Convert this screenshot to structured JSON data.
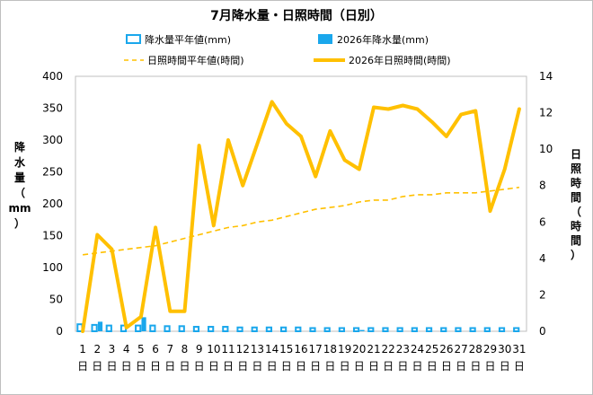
{
  "chart_data": {
    "type": "bar+line",
    "title": "7月降水量・日照時間（日別）",
    "categories": [
      "1",
      "2",
      "3",
      "4",
      "5",
      "6",
      "7",
      "8",
      "9",
      "10",
      "11",
      "12",
      "13",
      "14",
      "15",
      "16",
      "17",
      "18",
      "19",
      "20",
      "21",
      "22",
      "23",
      "24",
      "25",
      "26",
      "27",
      "28",
      "29",
      "30",
      "31"
    ],
    "day_suffix": "日",
    "y_left": {
      "label_chars": [
        "降",
        "水",
        "量",
        "（",
        "mm",
        "）"
      ],
      "ylim": [
        0,
        400
      ],
      "ticks": [
        0,
        50,
        100,
        150,
        200,
        250,
        300,
        350,
        400
      ]
    },
    "y_right": {
      "label_chars": [
        "日",
        "照",
        "時",
        "間",
        "（",
        "時",
        "間",
        "）"
      ],
      "ylim": [
        0,
        14
      ],
      "ticks": [
        0,
        2,
        4,
        6,
        8,
        10,
        12,
        14
      ]
    },
    "grid": false,
    "legend_position": "top",
    "series": [
      {
        "name": "降水量平年値(mm)",
        "type": "bar",
        "axis": "left",
        "color": "#1aa7ec",
        "style": "outline",
        "values": [
          11,
          10,
          9,
          9,
          9,
          9,
          8,
          8,
          7,
          7,
          7,
          6,
          6,
          6,
          6,
          6,
          5,
          5,
          5,
          5,
          5,
          5,
          5,
          5,
          5,
          5,
          5,
          5,
          5,
          5,
          5
        ]
      },
      {
        "name": "2026年降水量(mm)",
        "type": "bar",
        "axis": "left",
        "color": "#1aa7ec",
        "style": "filled",
        "values": [
          0,
          15,
          0,
          0,
          22,
          0,
          0,
          0,
          0,
          0,
          0,
          0,
          0,
          0,
          0,
          0,
          0,
          0,
          0,
          2,
          0,
          0,
          0,
          0,
          0,
          0,
          0,
          0,
          0,
          0,
          0
        ]
      },
      {
        "name": "日照時間平年値(時間)",
        "type": "line",
        "axis": "right",
        "color": "#ffc000",
        "style": "dashed",
        "values": [
          4.2,
          4.3,
          4.4,
          4.5,
          4.6,
          4.7,
          4.9,
          5.1,
          5.3,
          5.5,
          5.7,
          5.8,
          6.0,
          6.1,
          6.3,
          6.5,
          6.7,
          6.8,
          6.9,
          7.1,
          7.2,
          7.2,
          7.4,
          7.5,
          7.5,
          7.6,
          7.6,
          7.6,
          7.7,
          7.8,
          7.9
        ]
      },
      {
        "name": "2026年日照時間(時間)",
        "type": "line",
        "axis": "right",
        "color": "#ffc000",
        "style": "solid",
        "values": [
          0.0,
          5.3,
          4.5,
          0.2,
          0.8,
          5.7,
          1.1,
          1.1,
          10.2,
          5.8,
          10.5,
          8.0,
          10.3,
          12.6,
          11.4,
          10.7,
          8.5,
          11.0,
          9.4,
          8.9,
          12.3,
          12.2,
          12.4,
          12.2,
          11.5,
          10.7,
          11.9,
          12.1,
          6.6,
          8.9,
          12.2
        ]
      }
    ]
  }
}
